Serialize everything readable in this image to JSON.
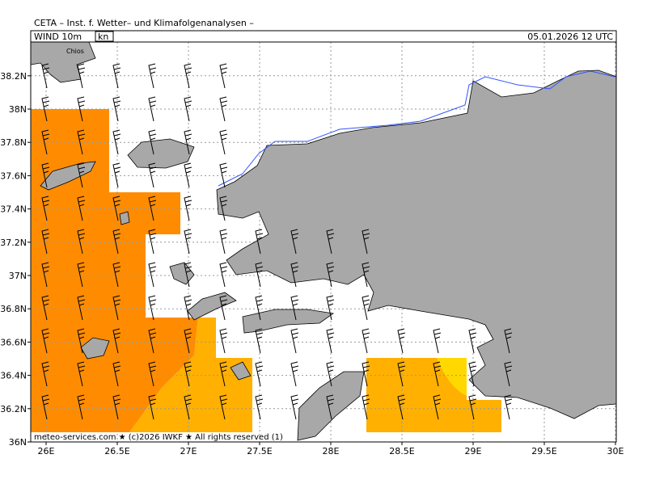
{
  "header": {
    "title": "CETA – Inst. f. Wetter– und Klimafolgenanalysen –",
    "field": "WIND 10m",
    "unit": "kn",
    "valid_time": "05.01.2026 12 UTC"
  },
  "map": {
    "lat_ticks": [
      {
        "value": 36,
        "label": "36N"
      },
      {
        "value": 36.2,
        "label": "36.2N"
      },
      {
        "value": 36.4,
        "label": "36.4N"
      },
      {
        "value": 36.6,
        "label": "36.6N"
      },
      {
        "value": 36.8,
        "label": "36.8N"
      },
      {
        "value": 37,
        "label": "37N"
      },
      {
        "value": 37.2,
        "label": "37.2N"
      },
      {
        "value": 37.4,
        "label": "37.4N"
      },
      {
        "value": 37.6,
        "label": "37.6N"
      },
      {
        "value": 37.8,
        "label": "37.8N"
      },
      {
        "value": 38,
        "label": "38N"
      },
      {
        "value": 38.2,
        "label": "38.2N"
      }
    ],
    "lon_ticks": [
      {
        "value": 26,
        "label": "26E"
      },
      {
        "value": 26.5,
        "label": "26.5E"
      },
      {
        "value": 27,
        "label": "27E"
      },
      {
        "value": 27.5,
        "label": "27.5E"
      },
      {
        "value": 28,
        "label": "28E"
      },
      {
        "value": 28.5,
        "label": "28.5E"
      },
      {
        "value": 29,
        "label": "29E"
      },
      {
        "value": 29.5,
        "label": "29.5E"
      },
      {
        "value": 30,
        "label": "30E"
      }
    ],
    "place_labels": [
      "Chios"
    ]
  },
  "footer": "meteo-services.com ★ (c)2026 IWKF ★ All rights reserved (1)"
}
